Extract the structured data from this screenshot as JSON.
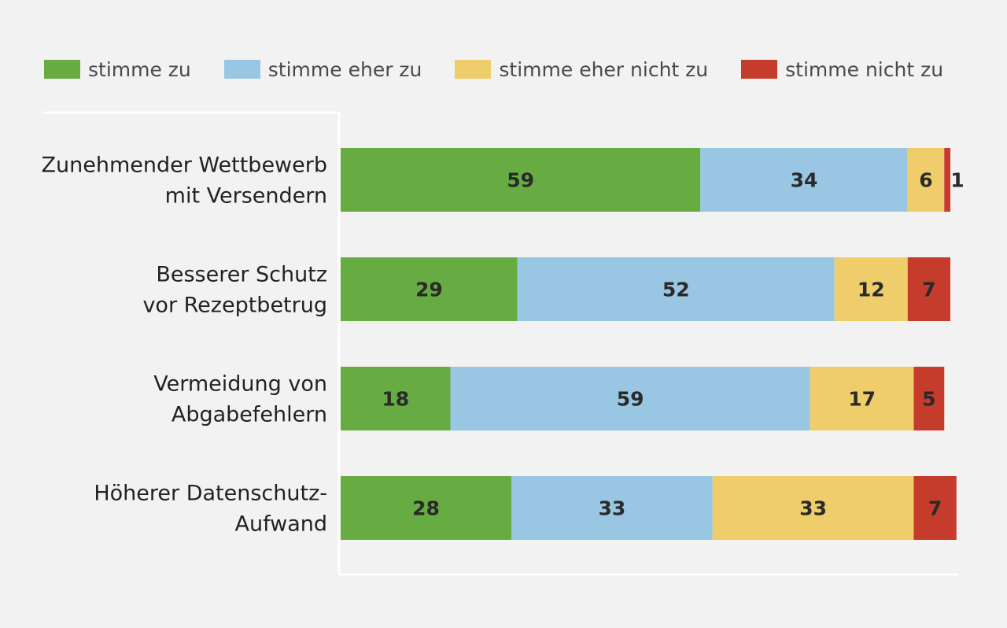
{
  "chart_data": {
    "type": "bar",
    "orientation": "horizontal",
    "stacked": true,
    "categories": [
      [
        "Zunehmender Wettbewerb",
        "mit Versendern"
      ],
      [
        "Besserer Schutz",
        "vor Rezeptbetrug"
      ],
      [
        "Vermeidung von",
        "Abgabefehlern"
      ],
      [
        "Höherer Datenschutz-",
        "Aufwand"
      ]
    ],
    "series": [
      {
        "name": "stimme zu",
        "color": "#67ac42",
        "values": [
          59,
          29,
          18,
          28
        ]
      },
      {
        "name": "stimme eher zu",
        "color": "#99c7e3",
        "values": [
          34,
          52,
          59,
          33
        ]
      },
      {
        "name": "stimme eher nicht zu",
        "color": "#f0cd6b",
        "values": [
          6,
          12,
          17,
          33
        ]
      },
      {
        "name": "stimme nicht zu",
        "color": "#c53b2c",
        "values": [
          1,
          7,
          5,
          7
        ]
      }
    ],
    "xlim": [
      0,
      100
    ],
    "legend_position": "top",
    "grid": false
  }
}
